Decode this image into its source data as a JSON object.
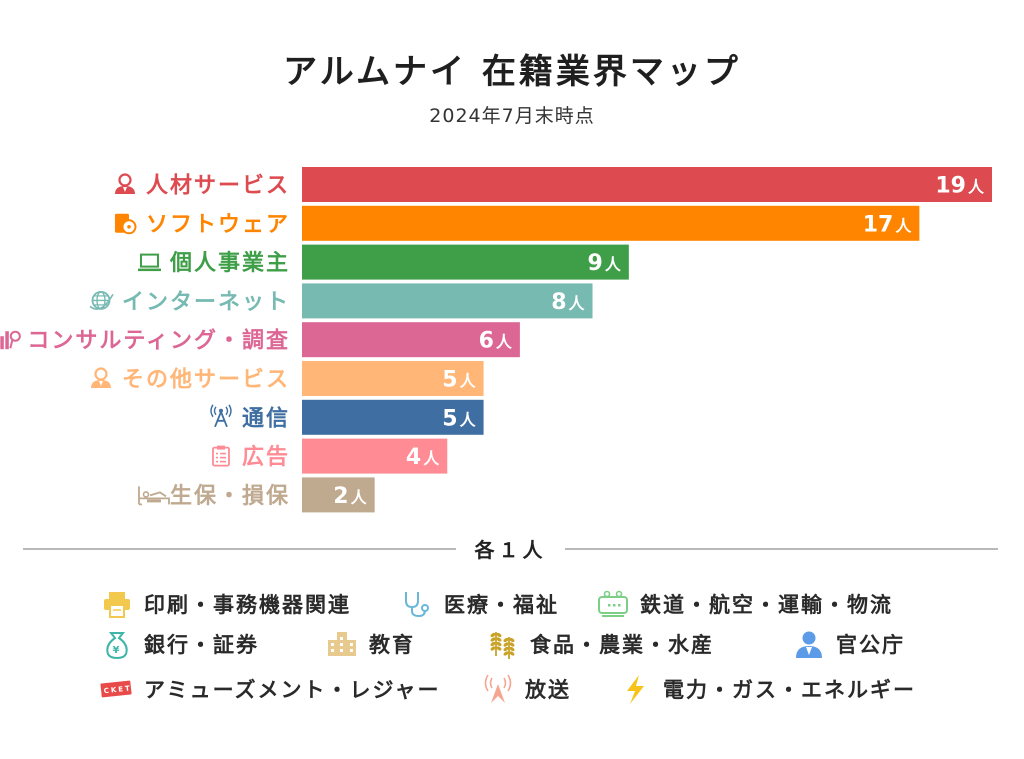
{
  "header": {
    "title": "アルムナイ 在籍業界マップ",
    "subtitle": "2024年7月末時点"
  },
  "chart_data": {
    "type": "bar",
    "orientation": "horizontal",
    "title": "アルムナイ 在籍業界マップ",
    "subtitle": "2024年7月末時点",
    "xlabel": "",
    "ylabel": "",
    "unit": "人",
    "xlim": [
      0,
      19
    ],
    "grid": false,
    "categories": [
      "人材サービス",
      "ソフトウェア",
      "個人事業主",
      "インターネット",
      "コンサルティング・調査",
      "その他サービス",
      "通信",
      "広告",
      "生保・損保"
    ],
    "values": [
      19,
      17,
      9,
      8,
      6,
      5,
      5,
      4,
      2
    ],
    "data_labels": [
      "19人",
      "17人",
      "9人",
      "8人",
      "6人",
      "5人",
      "5人",
      "4人",
      "2人"
    ],
    "colors": [
      "#dd4a4f",
      "#ff8500",
      "#3f9e48",
      "#77bab2",
      "#dc6795",
      "#ffb677",
      "#3f6fa2",
      "#ff8b94",
      "#bfa98f"
    ],
    "icons": [
      "person-icon",
      "software-box-icon",
      "laptop-icon",
      "globe-icon",
      "chart-search-icon",
      "person-icon",
      "antenna-icon",
      "clipboard-icon",
      "hospital-bed-icon"
    ]
  },
  "others": {
    "label": "各１人",
    "items": [
      {
        "label": "印刷・事務機器関連",
        "icon": "printer-icon",
        "color": "#f2c94c"
      },
      {
        "label": "医療・福祉",
        "icon": "stethoscope-icon",
        "color": "#6bb7d9"
      },
      {
        "label": "鉄道・航空・運輸・物流",
        "icon": "train-icon",
        "color": "#7ccf86"
      },
      {
        "label": "銀行・証券",
        "icon": "money-bag-icon",
        "color": "#3eb5a8"
      },
      {
        "label": "教育",
        "icon": "school-icon",
        "color": "#e8c98e"
      },
      {
        "label": "食品・農業・水産",
        "icon": "wheat-icon",
        "color": "#c9a227"
      },
      {
        "label": "官公庁",
        "icon": "official-icon",
        "color": "#5b9be8"
      },
      {
        "label": "アミューズメント・レジャー",
        "icon": "ticket-icon",
        "color": "#e84a4a"
      },
      {
        "label": "放送",
        "icon": "broadcast-icon",
        "color": "#f4a690"
      },
      {
        "label": "電力・ガス・エネルギー",
        "icon": "lightning-icon",
        "color": "#f7c21a"
      }
    ]
  }
}
